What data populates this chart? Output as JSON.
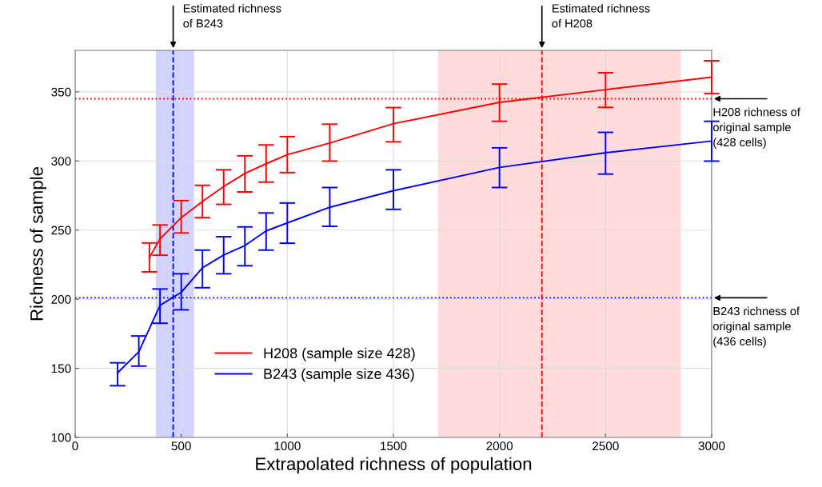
{
  "chart_data": {
    "type": "line",
    "xlabel": "Extrapolated richness of population",
    "ylabel": "Richness of sample",
    "xlim": [
      0,
      3000
    ],
    "xticks": [
      0,
      500,
      1000,
      1500,
      2000,
      2500,
      3000
    ],
    "ylim": [
      100,
      380
    ],
    "yticks": [
      100,
      150,
      200,
      250,
      300,
      350
    ],
    "grid": true,
    "legend": "bottom left",
    "marker": "none",
    "line_style": "solid",
    "series": [
      {
        "name": "H208 (sample size 428)",
        "color": "#ff0000",
        "x": [
          350,
          400,
          500,
          600,
          700,
          800,
          900,
          1000,
          1200,
          1500,
          2000,
          2500,
          3000
        ],
        "values": [
          230,
          243.6,
          259,
          270.7,
          281.5,
          291,
          298,
          304.6,
          313,
          327,
          342.4,
          351.6,
          360.6
        ],
        "errors": [
          [
            219.8,
            240.7
          ],
          [
            231.8,
            253.7
          ],
          [
            247.9,
            271.3
          ],
          [
            259,
            282.4
          ],
          [
            268.6,
            293.6
          ],
          [
            277.6,
            303.7
          ],
          [
            284.7,
            311.6
          ],
          [
            291.6,
            317.6
          ],
          [
            299.9,
            326.6
          ],
          [
            313.8,
            338.6
          ],
          [
            328.7,
            355.6
          ],
          [
            338.8,
            363.8
          ],
          [
            348.7,
            372.5
          ]
        ]
      },
      {
        "name": "B243 (sample size 436)",
        "color": "#0000ff",
        "x": [
          200,
          300,
          400,
          500,
          600,
          700,
          800,
          900,
          1000,
          1200,
          1500,
          2000,
          2500,
          3000
        ],
        "values": [
          146.7,
          162,
          195.5,
          205,
          222.7,
          232,
          238.8,
          249.4,
          255.2,
          266.5,
          278.5,
          295.3,
          306,
          314.4
        ],
        "errors": [
          [
            137.4,
            154
          ],
          [
            151.6,
            173.4
          ],
          [
            182.6,
            207.4
          ],
          [
            192.3,
            218.4
          ],
          [
            208.3,
            235.5
          ],
          [
            218.4,
            245.2
          ],
          [
            224.2,
            252.3
          ],
          [
            235.5,
            262.4
          ],
          [
            240.5,
            269.6
          ],
          [
            252.7,
            280.8
          ],
          [
            265,
            293.6
          ],
          [
            280.8,
            309.5
          ],
          [
            290.5,
            320.7
          ],
          [
            299.9,
            328.7
          ]
        ]
      }
    ],
    "bands": [
      {
        "axis": "x",
        "from": 380,
        "to": 560,
        "color": "#8080ff"
      },
      {
        "axis": "x",
        "from": 1710,
        "to": 2855,
        "color": "#ff9999"
      }
    ],
    "ref_lines": [
      {
        "axis": "y",
        "value": 345,
        "color": "#ff0000",
        "line_style": "dotted",
        "label": "H208 richness of\noriginal sample\n(428 cells)"
      },
      {
        "axis": "y",
        "value": 201,
        "color": "#0000ff",
        "line_style": "dotted",
        "label": "B243 richness of\noriginal sample\n(436 cells)"
      },
      {
        "axis": "x",
        "value": 462,
        "color": "#0000ff",
        "line_style": "dashed",
        "label": "Estimated richness\nof B243"
      },
      {
        "axis": "x",
        "value": 2200,
        "color": "#ff0000",
        "line_style": "dashed",
        "label": "Estimated richness\nof H208"
      }
    ]
  }
}
